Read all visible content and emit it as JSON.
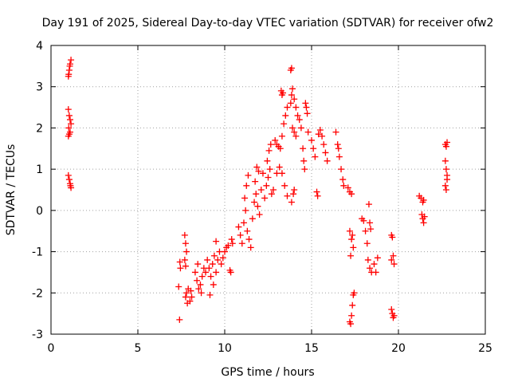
{
  "chart_data": {
    "type": "scatter",
    "title": "Day 191 of 2025, Sidereal Day-to-day VTEC variation (SDTVAR) for receiver ofw2",
    "xlabel": "GPS time / hours",
    "ylabel": "SDTVAR / TECUs",
    "xlim": [
      0,
      25
    ],
    "ylim": [
      -3,
      4
    ],
    "xticks": [
      "0",
      "5",
      "10",
      "15",
      "20",
      "25"
    ],
    "yticks": [
      "-3",
      "-2",
      "-1",
      "0",
      "1",
      "2",
      "3",
      "4"
    ],
    "xtick_values": [
      0,
      5,
      10,
      15,
      20,
      25
    ],
    "ytick_values": [
      -3,
      -2,
      -1,
      0,
      1,
      2,
      3,
      4
    ],
    "grid": true,
    "marker": "+",
    "color": "#ff0000",
    "series": [
      {
        "name": "SDTVAR",
        "points": [
          [
            1.0,
            3.25
          ],
          [
            1.05,
            3.4
          ],
          [
            1.1,
            3.55
          ],
          [
            1.15,
            3.65
          ],
          [
            1.02,
            3.3
          ],
          [
            1.08,
            3.5
          ],
          [
            1.0,
            2.45
          ],
          [
            1.05,
            2.3
          ],
          [
            1.1,
            2.2
          ],
          [
            1.15,
            2.1
          ],
          [
            1.02,
            2.0
          ],
          [
            1.0,
            1.8
          ],
          [
            1.05,
            1.85
          ],
          [
            1.1,
            1.9
          ],
          [
            1.0,
            0.85
          ],
          [
            1.05,
            0.75
          ],
          [
            1.1,
            0.65
          ],
          [
            1.15,
            0.55
          ],
          [
            1.12,
            0.6
          ],
          [
            7.4,
            -2.65
          ],
          [
            7.35,
            -1.85
          ],
          [
            7.45,
            -1.4
          ],
          [
            7.42,
            -1.25
          ],
          [
            7.7,
            -0.6
          ],
          [
            7.75,
            -0.8
          ],
          [
            7.8,
            -1.0
          ],
          [
            7.7,
            -1.2
          ],
          [
            7.75,
            -1.35
          ],
          [
            7.75,
            -2.1
          ],
          [
            7.8,
            -2.0
          ],
          [
            7.9,
            -1.9
          ],
          [
            8.0,
            -2.2
          ],
          [
            8.1,
            -2.1
          ],
          [
            7.85,
            -2.25
          ],
          [
            8.05,
            -1.95
          ],
          [
            8.3,
            -1.5
          ],
          [
            8.4,
            -1.7
          ],
          [
            8.5,
            -1.9
          ],
          [
            8.6,
            -1.8
          ],
          [
            8.7,
            -1.6
          ],
          [
            8.8,
            -1.4
          ],
          [
            8.9,
            -1.5
          ],
          [
            8.45,
            -1.3
          ],
          [
            8.65,
            -2.0
          ],
          [
            9.0,
            -1.2
          ],
          [
            9.1,
            -1.4
          ],
          [
            9.2,
            -1.6
          ],
          [
            9.3,
            -1.3
          ],
          [
            9.4,
            -1.1
          ],
          [
            9.5,
            -1.5
          ],
          [
            9.6,
            -1.2
          ],
          [
            9.7,
            -1.0
          ],
          [
            9.8,
            -1.3
          ],
          [
            9.9,
            -1.15
          ],
          [
            9.15,
            -2.05
          ],
          [
            9.35,
            -1.8
          ],
          [
            9.5,
            -0.75
          ],
          [
            10.0,
            -1.0
          ],
          [
            10.1,
            -0.9
          ],
          [
            10.2,
            -0.85
          ],
          [
            10.3,
            -1.45
          ],
          [
            10.35,
            -1.5
          ],
          [
            10.4,
            -0.7
          ],
          [
            10.45,
            -0.8
          ],
          [
            10.8,
            -0.4
          ],
          [
            10.9,
            -0.6
          ],
          [
            11.0,
            -0.8
          ],
          [
            11.1,
            -0.3
          ],
          [
            11.2,
            0.0
          ],
          [
            11.3,
            -0.5
          ],
          [
            11.4,
            -0.7
          ],
          [
            11.5,
            -0.9
          ],
          [
            11.15,
            0.3
          ],
          [
            11.25,
            0.6
          ],
          [
            11.35,
            0.85
          ],
          [
            11.6,
            -0.2
          ],
          [
            11.7,
            0.2
          ],
          [
            11.8,
            0.4
          ],
          [
            11.9,
            0.1
          ],
          [
            12.0,
            -0.1
          ],
          [
            12.1,
            0.5
          ],
          [
            12.2,
            0.9
          ],
          [
            11.75,
            0.7
          ],
          [
            11.95,
            0.95
          ],
          [
            11.85,
            1.05
          ],
          [
            12.3,
            0.3
          ],
          [
            12.4,
            0.6
          ],
          [
            12.5,
            0.8
          ],
          [
            12.6,
            1.0
          ],
          [
            12.7,
            0.4
          ],
          [
            12.8,
            0.5
          ],
          [
            12.45,
            1.2
          ],
          [
            12.55,
            1.45
          ],
          [
            12.65,
            1.6
          ],
          [
            12.9,
            1.7
          ],
          [
            13.0,
            1.6
          ],
          [
            13.1,
            1.55
          ],
          [
            13.2,
            1.5
          ],
          [
            13.3,
            1.8
          ],
          [
            13.4,
            2.1
          ],
          [
            13.5,
            2.3
          ],
          [
            13.6,
            2.5
          ],
          [
            13.0,
            0.9
          ],
          [
            13.15,
            1.05
          ],
          [
            13.3,
            0.9
          ],
          [
            13.45,
            0.6
          ],
          [
            13.6,
            0.35
          ],
          [
            13.25,
            2.9
          ],
          [
            13.3,
            2.8
          ],
          [
            13.35,
            2.85
          ],
          [
            13.8,
            3.4
          ],
          [
            13.85,
            3.45
          ],
          [
            13.8,
            2.6
          ],
          [
            13.85,
            2.8
          ],
          [
            13.9,
            2.95
          ],
          [
            14.0,
            2.7
          ],
          [
            14.1,
            2.5
          ],
          [
            14.2,
            2.3
          ],
          [
            13.9,
            2.0
          ],
          [
            14.0,
            1.9
          ],
          [
            14.1,
            1.8
          ],
          [
            13.95,
            0.4
          ],
          [
            14.0,
            0.5
          ],
          [
            13.85,
            0.2
          ],
          [
            14.3,
            2.2
          ],
          [
            14.4,
            2.0
          ],
          [
            14.5,
            1.5
          ],
          [
            14.55,
            1.2
          ],
          [
            14.6,
            1.0
          ],
          [
            14.65,
            2.6
          ],
          [
            14.7,
            2.5
          ],
          [
            14.75,
            2.35
          ],
          [
            14.8,
            1.9
          ],
          [
            15.0,
            1.7
          ],
          [
            15.1,
            1.5
          ],
          [
            15.2,
            1.3
          ],
          [
            15.3,
            0.45
          ],
          [
            15.35,
            0.35
          ],
          [
            15.4,
            1.85
          ],
          [
            15.5,
            1.95
          ],
          [
            15.6,
            1.8
          ],
          [
            15.7,
            1.6
          ],
          [
            15.8,
            1.4
          ],
          [
            15.9,
            1.2
          ],
          [
            16.4,
            1.9
          ],
          [
            16.5,
            1.6
          ],
          [
            16.6,
            1.3
          ],
          [
            16.7,
            1.0
          ],
          [
            16.8,
            0.75
          ],
          [
            16.85,
            0.6
          ],
          [
            16.55,
            1.5
          ],
          [
            17.1,
            0.55
          ],
          [
            17.2,
            0.45
          ],
          [
            17.3,
            0.4
          ],
          [
            17.2,
            -0.5
          ],
          [
            17.3,
            -0.7
          ],
          [
            17.4,
            -0.9
          ],
          [
            17.25,
            -1.1
          ],
          [
            17.35,
            -0.6
          ],
          [
            17.2,
            -2.7
          ],
          [
            17.3,
            -2.55
          ],
          [
            17.35,
            -2.3
          ],
          [
            17.4,
            -2.05
          ],
          [
            17.45,
            -2.0
          ],
          [
            17.25,
            -2.75
          ],
          [
            17.9,
            -0.2
          ],
          [
            18.0,
            -0.25
          ],
          [
            18.1,
            -0.5
          ],
          [
            18.2,
            -0.8
          ],
          [
            18.3,
            0.15
          ],
          [
            18.35,
            -0.3
          ],
          [
            18.4,
            -0.45
          ],
          [
            18.25,
            -1.2
          ],
          [
            18.35,
            -1.4
          ],
          [
            18.45,
            -1.5
          ],
          [
            18.6,
            -1.3
          ],
          [
            18.8,
            -1.15
          ],
          [
            18.7,
            -1.5
          ],
          [
            19.6,
            -0.6
          ],
          [
            19.65,
            -0.65
          ],
          [
            19.7,
            -1.1
          ],
          [
            19.75,
            -1.3
          ],
          [
            19.6,
            -1.2
          ],
          [
            19.6,
            -2.4
          ],
          [
            19.65,
            -2.5
          ],
          [
            19.7,
            -2.6
          ],
          [
            19.75,
            -2.55
          ],
          [
            21.2,
            0.35
          ],
          [
            21.3,
            0.3
          ],
          [
            21.4,
            0.2
          ],
          [
            21.45,
            0.25
          ],
          [
            21.35,
            -0.1
          ],
          [
            21.4,
            -0.2
          ],
          [
            21.45,
            -0.3
          ],
          [
            21.5,
            -0.15
          ],
          [
            22.7,
            1.6
          ],
          [
            22.75,
            1.55
          ],
          [
            22.8,
            1.65
          ],
          [
            22.7,
            1.2
          ],
          [
            22.75,
            1.0
          ],
          [
            22.8,
            0.85
          ],
          [
            22.7,
            0.6
          ],
          [
            22.75,
            0.5
          ],
          [
            22.8,
            0.75
          ]
        ]
      }
    ]
  }
}
